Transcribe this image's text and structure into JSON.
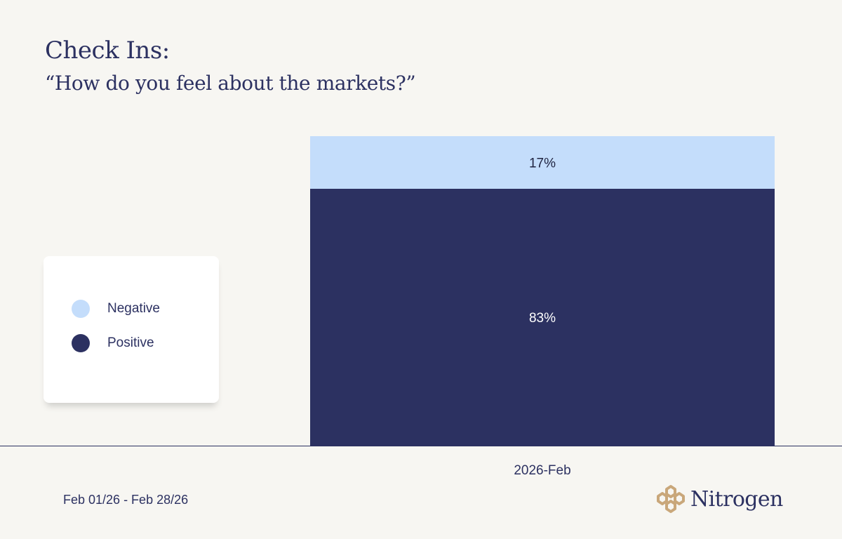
{
  "header": {
    "title": "Check Ins:",
    "subtitle": "“How do you feel about the markets?”"
  },
  "chart_data": {
    "type": "bar",
    "stacked": true,
    "categories": [
      "2026-Feb"
    ],
    "series": [
      {
        "name": "Positive",
        "values": [
          83
        ],
        "label": "83%",
        "color": "#2c3161"
      },
      {
        "name": "Negative",
        "values": [
          17
        ],
        "label": "17%",
        "color": "#c4ddfb"
      }
    ],
    "ylim": [
      0,
      100
    ],
    "grid": false,
    "legend_position": "left"
  },
  "legend": {
    "items": [
      {
        "label": "Negative",
        "color": "#c4ddfb"
      },
      {
        "label": "Positive",
        "color": "#2c3161"
      }
    ]
  },
  "footer": {
    "date_range": "Feb 01/26 - Feb 28/26",
    "logo_text": "Nitrogen"
  },
  "colors": {
    "background": "#f7f6f2",
    "text": "#2c3161",
    "axis": "#2c3161",
    "logo_mark": "#c9a77a"
  }
}
